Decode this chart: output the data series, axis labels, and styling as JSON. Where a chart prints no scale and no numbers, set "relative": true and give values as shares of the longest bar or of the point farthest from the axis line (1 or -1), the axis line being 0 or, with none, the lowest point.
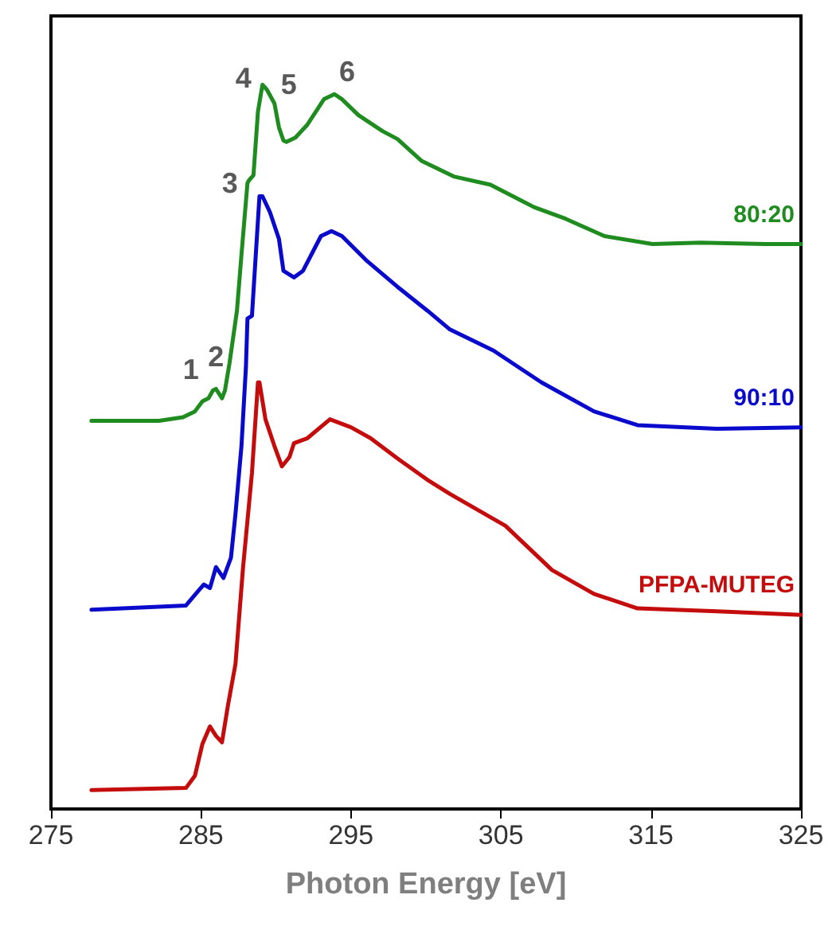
{
  "chart_data": {
    "type": "line",
    "xlabel": "Photon Energy [eV]",
    "xlim": [
      275,
      325
    ],
    "xticks": [
      275,
      285,
      295,
      305,
      315,
      325
    ],
    "relative": true,
    "series": [
      {
        "name": "80:20",
        "color": "#1f8c1f",
        "x": [
          277.7,
          282.2,
          283.8,
          284.6,
          285.1,
          285.5,
          285.8,
          286.0,
          286.4,
          286.6,
          286.9,
          287.4,
          287.7,
          288.1,
          288.2,
          288.5,
          288.8,
          289.1,
          289.4,
          289.9,
          290.2,
          290.5,
          290.7,
          291.3,
          292.1,
          293.2,
          293.9,
          294.4,
          295.5,
          297.1,
          298.1,
          299.7,
          301.9,
          304.3,
          307.2,
          309.3,
          311.9,
          315.1,
          318.3,
          322.6,
          325.0
        ],
        "values": [
          0.536,
          0.536,
          0.541,
          0.549,
          0.563,
          0.567,
          0.578,
          0.58,
          0.567,
          0.578,
          0.615,
          0.688,
          0.765,
          0.864,
          0.868,
          0.875,
          0.963,
          1.0,
          0.993,
          0.974,
          0.941,
          0.923,
          0.921,
          0.927,
          0.945,
          0.98,
          0.987,
          0.98,
          0.958,
          0.936,
          0.925,
          0.895,
          0.873,
          0.862,
          0.831,
          0.815,
          0.791,
          0.78,
          0.782,
          0.78,
          0.78
        ]
      },
      {
        "name": "90:10",
        "color": "#0a0acc",
        "x": [
          277.7,
          284.0,
          284.9,
          285.2,
          285.6,
          286.0,
          286.5,
          287.0,
          287.3,
          287.7,
          288.0,
          288.1,
          288.4,
          288.9,
          289.1,
          289.6,
          290.2,
          290.5,
          291.2,
          291.8,
          293.0,
          293.7,
          294.4,
          296.0,
          298.1,
          300.1,
          301.6,
          304.5,
          307.7,
          311.2,
          314.1,
          319.4,
          325.0
        ],
        "values": [
          0.275,
          0.281,
          0.303,
          0.31,
          0.305,
          0.334,
          0.319,
          0.347,
          0.407,
          0.501,
          0.611,
          0.677,
          0.681,
          0.846,
          0.846,
          0.824,
          0.787,
          0.743,
          0.734,
          0.743,
          0.791,
          0.798,
          0.791,
          0.758,
          0.721,
          0.688,
          0.662,
          0.633,
          0.589,
          0.549,
          0.53,
          0.525,
          0.527
        ]
      },
      {
        "name": "PFPA-MUTEG",
        "color": "#c40c0c",
        "x": [
          277.7,
          284.0,
          284.6,
          285.1,
          285.6,
          286.0,
          286.4,
          286.8,
          287.3,
          287.8,
          288.4,
          288.8,
          288.9,
          289.3,
          289.9,
          290.4,
          290.9,
          291.2,
          292.1,
          293.6,
          295.0,
          296.3,
          298.1,
          300.2,
          301.6,
          305.3,
          308.4,
          311.2,
          314.1,
          319.4,
          325.0
        ],
        "values": [
          0.026,
          0.029,
          0.046,
          0.09,
          0.114,
          0.101,
          0.092,
          0.143,
          0.2,
          0.332,
          0.464,
          0.589,
          0.589,
          0.538,
          0.501,
          0.473,
          0.486,
          0.505,
          0.512,
          0.538,
          0.527,
          0.512,
          0.484,
          0.453,
          0.435,
          0.391,
          0.33,
          0.297,
          0.277,
          0.273,
          0.268
        ]
      }
    ],
    "annotations": [
      {
        "text": "1",
        "x": 285.5,
        "y": 0.567
      },
      {
        "text": "2",
        "x": 286.0,
        "y": 0.58
      },
      {
        "text": "3",
        "x": 288.2,
        "y": 0.868
      },
      {
        "text": "4",
        "x": 289.1,
        "y": 1.0
      },
      {
        "text": "5",
        "x": 289.9,
        "y": 0.974
      },
      {
        "text": "6",
        "x": 293.9,
        "y": 0.987
      }
    ]
  }
}
